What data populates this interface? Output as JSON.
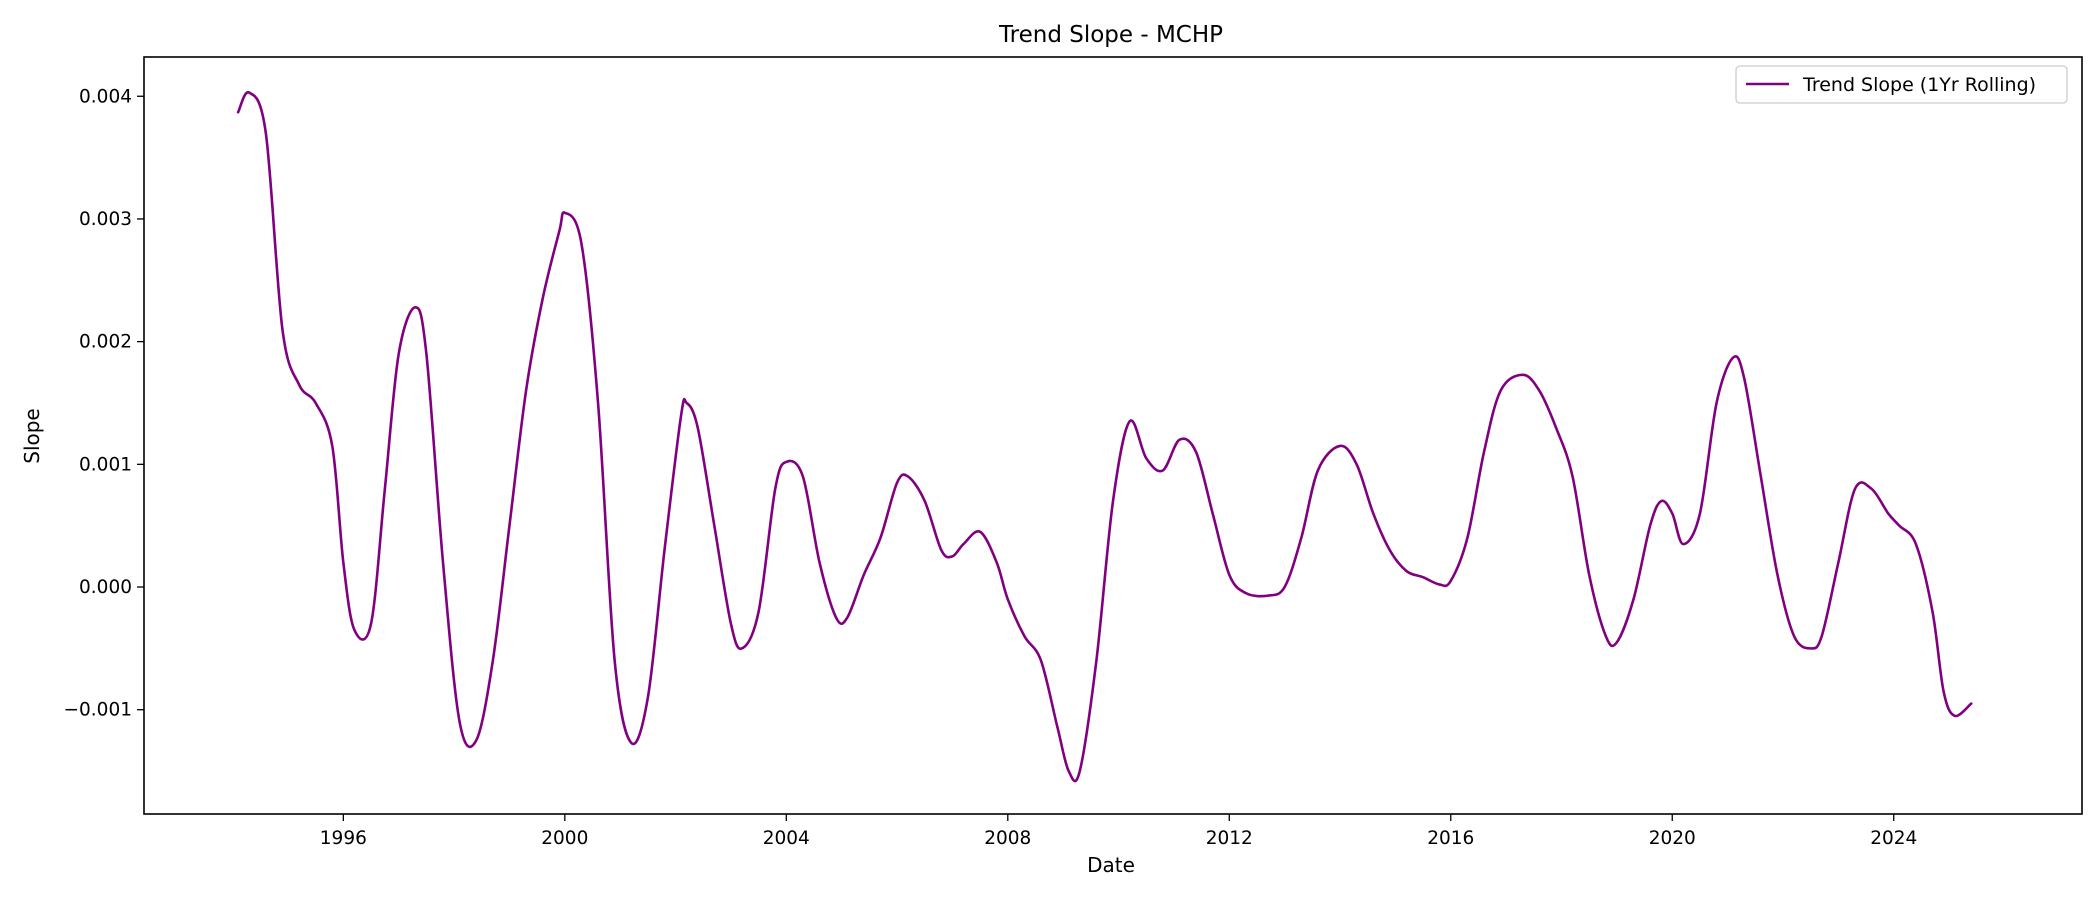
{
  "chart_data": {
    "type": "line",
    "title": "Trend Slope - MCHP",
    "xlabel": "Date",
    "ylabel": "Slope",
    "x_ticks": [
      1996,
      2000,
      2004,
      2008,
      2012,
      2016,
      2020,
      2024
    ],
    "x_tick_labels": [
      "1996",
      "2000",
      "2004",
      "2008",
      "2012",
      "2016",
      "2020",
      "2024"
    ],
    "y_ticks": [
      -0.001,
      0.0,
      0.001,
      0.002,
      0.003,
      0.004
    ],
    "y_tick_labels": [
      "−0.001",
      "0.000",
      "0.001",
      "0.002",
      "0.003",
      "0.004"
    ],
    "xlim": [
      1992.4,
      2027.4
    ],
    "ylim": [
      -0.00185,
      0.00432
    ],
    "grid": false,
    "legend_position": "top-right",
    "series": [
      {
        "name": "Trend Slope (1Yr Rolling)",
        "color": "#800080",
        "x": [
          1994.1,
          1994.3,
          1994.6,
          1994.9,
          1995.2,
          1995.5,
          1995.8,
          1996.0,
          1996.2,
          1996.5,
          1996.75,
          1997.0,
          1997.3,
          1997.5,
          1997.8,
          1998.1,
          1998.4,
          1998.7,
          1999.0,
          1999.3,
          1999.6,
          1999.9,
          2000.0,
          2000.3,
          2000.6,
          2000.9,
          2001.2,
          2001.5,
          2001.8,
          2002.1,
          2002.2,
          2002.4,
          2002.7,
          2003.0,
          2003.2,
          2003.5,
          2003.8,
          2004.0,
          2004.3,
          2004.6,
          2004.9,
          2005.1,
          2005.4,
          2005.7,
          2006.0,
          2006.2,
          2006.5,
          2006.8,
          2007.0,
          2007.2,
          2007.5,
          2007.8,
          2008.0,
          2008.3,
          2008.6,
          2008.9,
          2009.1,
          2009.3,
          2009.6,
          2009.9,
          2010.2,
          2010.5,
          2010.8,
          2011.1,
          2011.4,
          2011.7,
          2012.0,
          2012.3,
          2012.7,
          2013.0,
          2013.3,
          2013.6,
          2014.0,
          2014.3,
          2014.6,
          2014.9,
          2015.2,
          2015.5,
          2015.8,
          2016.0,
          2016.3,
          2016.6,
          2016.9,
          2017.3,
          2017.6,
          2017.9,
          2018.2,
          2018.5,
          2018.8,
          2019.0,
          2019.3,
          2019.6,
          2019.8,
          2020.0,
          2020.2,
          2020.5,
          2020.8,
          2021.1,
          2021.3,
          2021.6,
          2021.9,
          2022.2,
          2022.5,
          2022.7,
          2023.0,
          2023.3,
          2023.6,
          2023.9,
          2024.1,
          2024.4,
          2024.7,
          2024.9,
          2025.1,
          2025.4
        ],
        "y": [
          0.00387,
          0.00403,
          0.0037,
          0.0021,
          0.00165,
          0.0015,
          0.00115,
          0.0002,
          -0.00035,
          -0.0003,
          0.0008,
          0.0019,
          0.00228,
          0.0019,
          0.0002,
          -0.0011,
          -0.00125,
          -0.0006,
          0.0005,
          0.0016,
          0.00235,
          0.0029,
          0.00305,
          0.0028,
          0.0015,
          -0.0006,
          -0.00127,
          -0.0009,
          0.0003,
          0.0014,
          0.0015,
          0.0013,
          0.0005,
          -0.0003,
          -0.0005,
          -0.0002,
          0.0008,
          0.00102,
          0.0009,
          0.0002,
          -0.00025,
          -0.00025,
          0.0001,
          0.0004,
          0.00085,
          0.0009,
          0.0007,
          0.0003,
          0.00025,
          0.00035,
          0.00045,
          0.0002,
          -0.0001,
          -0.0004,
          -0.0006,
          -0.00115,
          -0.0015,
          -0.0015,
          -0.0006,
          0.0007,
          0.00135,
          0.00105,
          0.00095,
          0.0012,
          0.0011,
          0.0006,
          0.0001,
          -5e-05,
          -7e-05,
          0.0,
          0.0004,
          0.00095,
          0.00115,
          0.001,
          0.0006,
          0.0003,
          0.00013,
          8e-05,
          2e-05,
          5e-05,
          0.0004,
          0.0011,
          0.0016,
          0.00173,
          0.0016,
          0.0013,
          0.0009,
          0.0001,
          -0.0004,
          -0.00045,
          -0.0001,
          0.0005,
          0.0007,
          0.0006,
          0.00035,
          0.0006,
          0.0015,
          0.00187,
          0.0017,
          0.0009,
          0.0001,
          -0.0004,
          -0.0005,
          -0.0004,
          0.0002,
          0.0008,
          0.0008,
          0.0006,
          0.0005,
          0.00035,
          -0.0002,
          -0.00085,
          -0.00105,
          -0.00095
        ]
      }
    ]
  }
}
